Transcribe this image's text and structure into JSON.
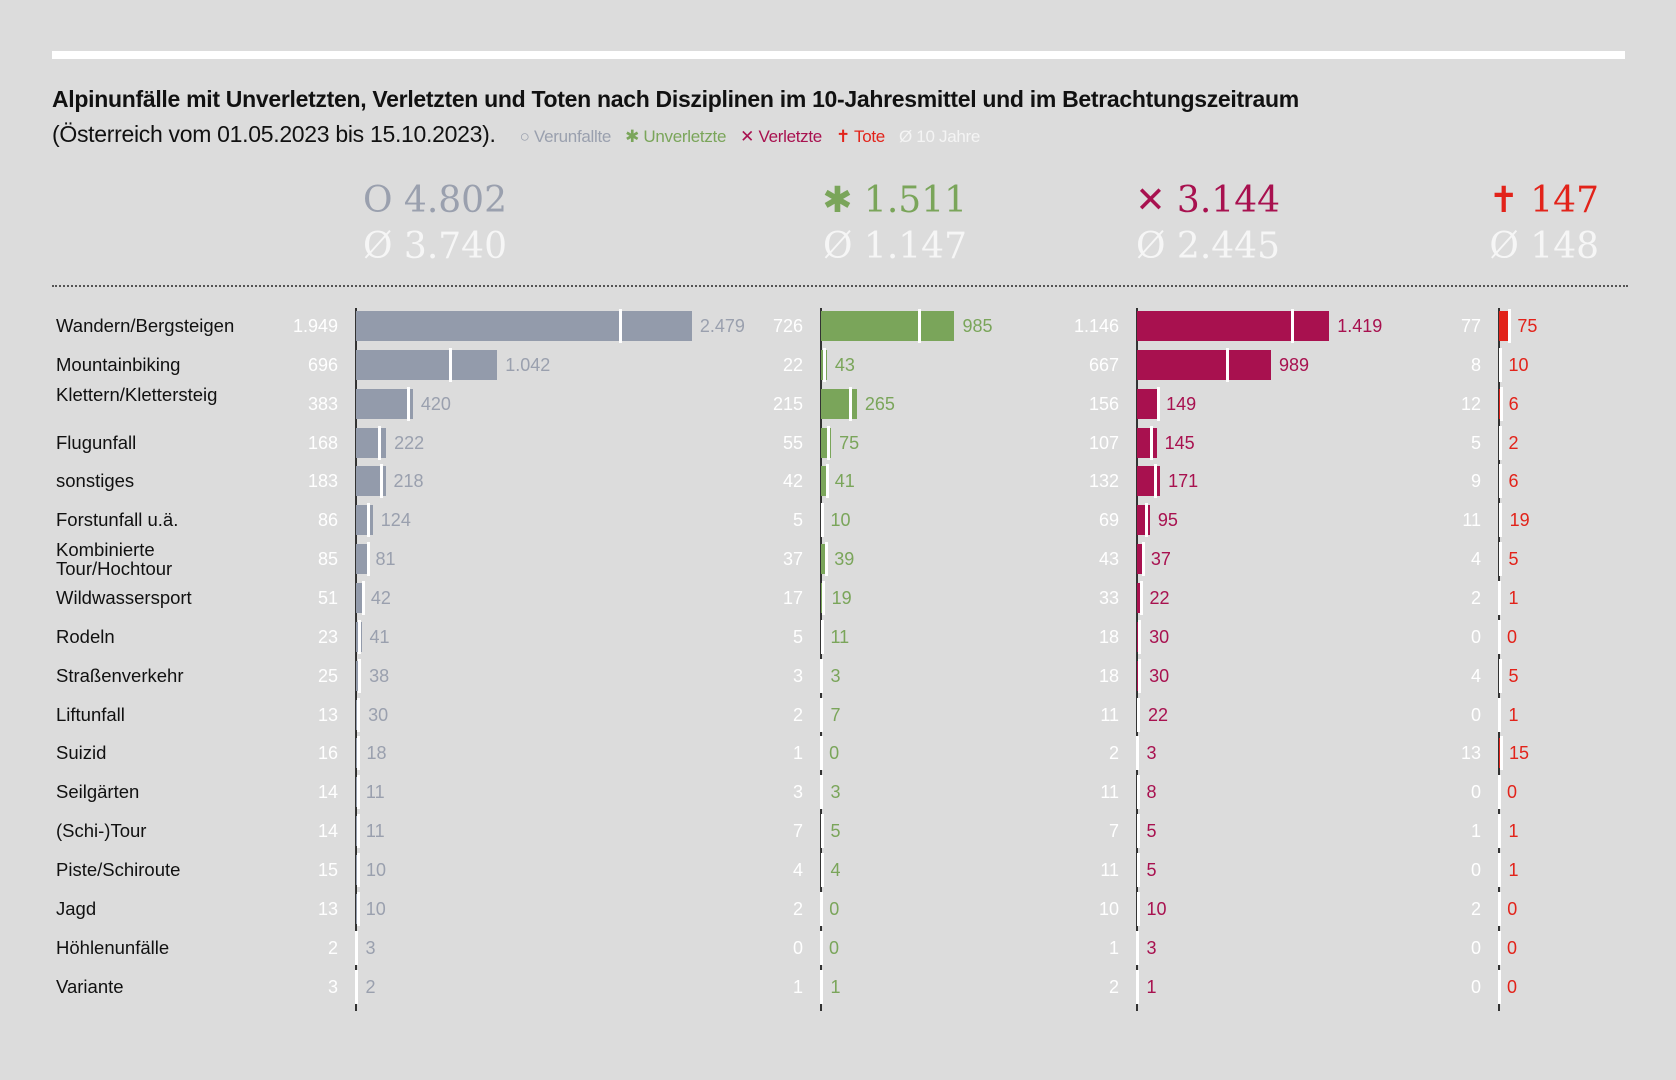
{
  "title": "Alpinunfälle mit Unverletzten, Verletzten und Toten nach Disziplinen im 10-Jahresmittel und im Betrachtungszeitraum",
  "subtitle": "(Österreich vom 01.05.2023 bis 15.10.2023).",
  "legend": [
    {
      "symbol": "○",
      "label": "Verunfallte",
      "color": "#9aa0ae"
    },
    {
      "symbol": "✱",
      "label": "Unverletzte",
      "color": "#7aa55a"
    },
    {
      "symbol": "✕",
      "label": "Verletzte",
      "color": "#a8114f"
    },
    {
      "symbol": "✝",
      "label": "Tote",
      "color": "#e2231a"
    },
    {
      "symbol": "Ø",
      "label": "10 Jahre",
      "color": "#f4f4f4"
    }
  ],
  "totals": [
    {
      "current": "4.802",
      "avg": "3.740",
      "symbol": "O",
      "avg_symbol": "Ø",
      "color": "#9aa0ae"
    },
    {
      "current": "1.511",
      "avg": "1.147",
      "symbol": "✱",
      "avg_symbol": "Ø",
      "color": "#7aa55a"
    },
    {
      "current": "3.144",
      "avg": "2.445",
      "symbol": "✕",
      "avg_symbol": "Ø",
      "color": "#a8114f"
    },
    {
      "current": "147",
      "avg": "148",
      "symbol": "✝",
      "avg_symbol": "Ø",
      "color": "#e2231a"
    }
  ],
  "chart_data": {
    "type": "bar",
    "orientation": "horizontal",
    "categories": [
      "Wandern/Bergsteigen",
      "Mountainbiking",
      "Klettern/Klettersteig",
      "Flugunfall",
      "sonstiges",
      "Forstunfall u.ä.",
      "Kombinierte Tour/Hochtour",
      "Wildwassersport",
      "Rodeln",
      "Straßenverkehr",
      "Liftunfall",
      "Suizid",
      "Seilgärten",
      "(Schi-)Tour",
      "Piste/Schiroute",
      "Jagd",
      "Höhlenunfälle",
      "Variante"
    ],
    "series": [
      {
        "name": "Verunfallte",
        "color": "#939bab",
        "text_color": "#9aa0ae",
        "values": [
          2479,
          1042,
          420,
          222,
          218,
          124,
          81,
          42,
          41,
          38,
          30,
          18,
          11,
          11,
          10,
          10,
          3,
          2
        ],
        "avg_10y": [
          1949,
          696,
          383,
          168,
          183,
          86,
          85,
          51,
          23,
          25,
          13,
          16,
          14,
          14,
          15,
          13,
          2,
          3
        ]
      },
      {
        "name": "Unverletzte",
        "color": "#7aa55a",
        "text_color": "#7aa55a",
        "values": [
          985,
          43,
          265,
          75,
          41,
          10,
          39,
          19,
          11,
          3,
          7,
          0,
          3,
          5,
          4,
          0,
          0,
          1
        ],
        "avg_10y": [
          726,
          22,
          215,
          55,
          42,
          5,
          37,
          17,
          5,
          3,
          2,
          1,
          3,
          7,
          4,
          2,
          0,
          1
        ]
      },
      {
        "name": "Verletzte",
        "color": "#a8114f",
        "text_color": "#a8114f",
        "values": [
          1419,
          989,
          149,
          145,
          171,
          95,
          37,
          22,
          30,
          30,
          22,
          3,
          8,
          5,
          5,
          10,
          3,
          1
        ],
        "avg_10y": [
          1146,
          667,
          156,
          107,
          132,
          69,
          43,
          33,
          18,
          18,
          11,
          2,
          11,
          7,
          11,
          10,
          1,
          2
        ]
      },
      {
        "name": "Tote",
        "color": "#e2231a",
        "text_color": "#e2231a",
        "values": [
          75,
          10,
          6,
          2,
          6,
          19,
          5,
          1,
          0,
          5,
          1,
          15,
          0,
          1,
          1,
          0,
          0,
          0
        ],
        "avg_10y": [
          77,
          8,
          12,
          5,
          9,
          11,
          4,
          2,
          0,
          4,
          0,
          13,
          0,
          1,
          0,
          2,
          0,
          0
        ]
      }
    ],
    "grid": false
  }
}
